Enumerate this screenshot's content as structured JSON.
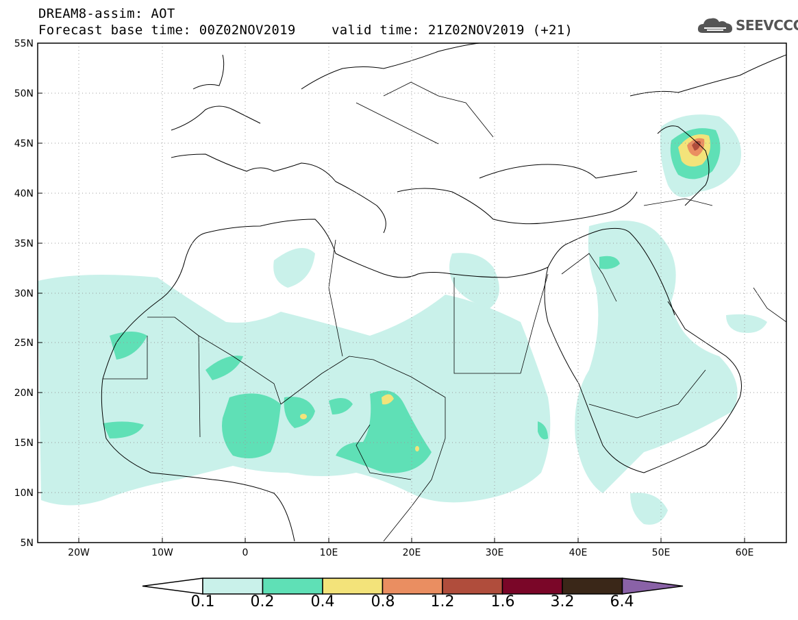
{
  "header": {
    "title": "DREAM8-assim: AOT",
    "base_time": "Forecast base time: 00Z02NOV2019",
    "valid_time": "valid time: 21Z02NOV2019 (+21)"
  },
  "logo": {
    "text": "SEEVCCC",
    "icon": "cloud-icon"
  },
  "map": {
    "lat_labels": [
      "55N",
      "50N",
      "45N",
      "40N",
      "35N",
      "30N",
      "25N",
      "20N",
      "15N",
      "10N",
      "5N"
    ],
    "lon_labels": [
      "20W",
      "10W",
      "0",
      "10E",
      "20E",
      "30E",
      "40E",
      "50E",
      "60E"
    ],
    "lat_range": [
      5,
      55
    ],
    "lon_range": [
      -25,
      65
    ],
    "grid": "dotted"
  },
  "colorbar": {
    "labels": [
      "0.1",
      "0.2",
      "0.4",
      "0.8",
      "1.2",
      "1.6",
      "3.2",
      "6.4"
    ],
    "colors": [
      "#ffffff",
      "#c9f1ea",
      "#5fe0b6",
      "#f3e37a",
      "#ea8e61",
      "#b04d3c",
      "#7a0628",
      "#3a2718",
      "#8a62a7"
    ]
  }
}
